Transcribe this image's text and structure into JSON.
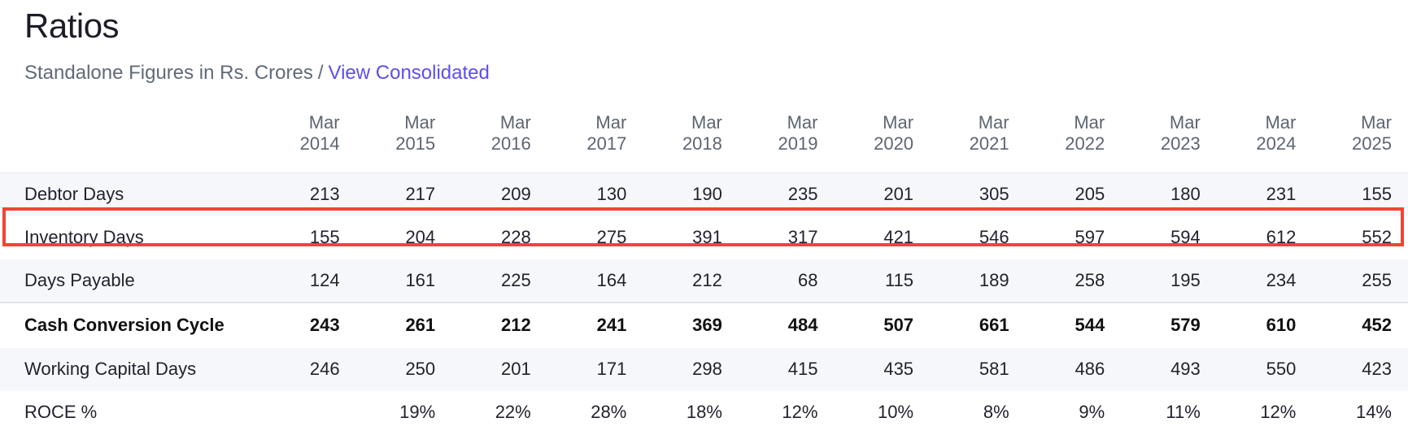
{
  "page": {
    "title": "Ratios",
    "subtitle_prefix": "Standalone Figures in Rs. Crores",
    "subtitle_separator": "/",
    "subtitle_link": "View Consolidated"
  },
  "colors": {
    "link": "#5b4ff0",
    "highlight_border": "#f44336",
    "stripe_bg": "#f6f7fb"
  },
  "table": {
    "columns": [
      {
        "m": "Mar",
        "y": "2014"
      },
      {
        "m": "Mar",
        "y": "2015"
      },
      {
        "m": "Mar",
        "y": "2016"
      },
      {
        "m": "Mar",
        "y": "2017"
      },
      {
        "m": "Mar",
        "y": "2018"
      },
      {
        "m": "Mar",
        "y": "2019"
      },
      {
        "m": "Mar",
        "y": "2020"
      },
      {
        "m": "Mar",
        "y": "2021"
      },
      {
        "m": "Mar",
        "y": "2022"
      },
      {
        "m": "Mar",
        "y": "2023"
      },
      {
        "m": "Mar",
        "y": "2024"
      },
      {
        "m": "Mar",
        "y": "2025"
      }
    ],
    "rows": [
      {
        "label": "Debtor Days",
        "values": [
          "213",
          "217",
          "209",
          "130",
          "190",
          "235",
          "201",
          "305",
          "205",
          "180",
          "231",
          "155"
        ]
      },
      {
        "label": "Inventory Days",
        "values": [
          "155",
          "204",
          "228",
          "275",
          "391",
          "317",
          "421",
          "546",
          "597",
          "594",
          "612",
          "552"
        ],
        "highlighted": true
      },
      {
        "label": "Days Payable",
        "values": [
          "124",
          "161",
          "225",
          "164",
          "212",
          "68",
          "115",
          "189",
          "258",
          "195",
          "234",
          "255"
        ]
      },
      {
        "label": "Cash Conversion Cycle",
        "values": [
          "243",
          "261",
          "212",
          "241",
          "369",
          "484",
          "507",
          "661",
          "544",
          "579",
          "610",
          "452"
        ],
        "bold": true
      },
      {
        "label": "Working Capital Days",
        "values": [
          "246",
          "250",
          "201",
          "171",
          "298",
          "415",
          "435",
          "581",
          "486",
          "493",
          "550",
          "423"
        ]
      },
      {
        "label": "ROCE %",
        "values": [
          "",
          "19%",
          "22%",
          "28%",
          "18%",
          "12%",
          "10%",
          "8%",
          "9%",
          "11%",
          "12%",
          "14%"
        ]
      }
    ]
  }
}
